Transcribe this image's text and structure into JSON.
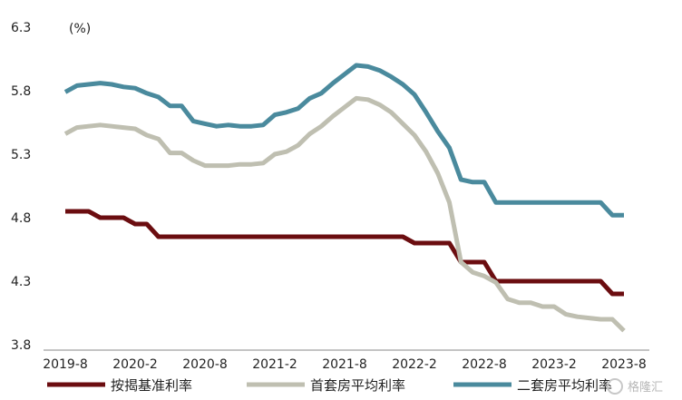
{
  "chart_data": {
    "type": "line",
    "unit_label": "(%)",
    "ylim": [
      3.8,
      6.3
    ],
    "y_ticks": [
      6.3,
      5.8,
      5.3,
      4.8,
      4.3,
      3.8
    ],
    "y_tick_labels": [
      "6.3",
      "5.8",
      "5.3",
      "4.8",
      "4.3",
      "3.8"
    ],
    "x_tick_labels": [
      "2019-8",
      "2020-2",
      "2020-8",
      "2021-2",
      "2021-8",
      "2022-2",
      "2022-8",
      "2023-2",
      "2023-8"
    ],
    "x": [
      "2019-8",
      "2019-9",
      "2019-10",
      "2019-11",
      "2019-12",
      "2020-1",
      "2020-2",
      "2020-3",
      "2020-4",
      "2020-5",
      "2020-6",
      "2020-7",
      "2020-8",
      "2020-9",
      "2020-10",
      "2020-11",
      "2020-12",
      "2021-1",
      "2021-2",
      "2021-3",
      "2021-4",
      "2021-5",
      "2021-6",
      "2021-7",
      "2021-8",
      "2021-9",
      "2021-10",
      "2021-11",
      "2021-12",
      "2022-1",
      "2022-2",
      "2022-3",
      "2022-4",
      "2022-5",
      "2022-6",
      "2022-7",
      "2022-8",
      "2022-9",
      "2022-10",
      "2022-11",
      "2022-12",
      "2023-1",
      "2023-2",
      "2023-3",
      "2023-4",
      "2023-5",
      "2023-6",
      "2023-7",
      "2023-8"
    ],
    "grid": false,
    "legend_position": "bottom",
    "series": [
      {
        "name": "按揭基准利率",
        "color": "#6b0d10",
        "values": [
          4.85,
          4.85,
          4.85,
          4.8,
          4.8,
          4.8,
          4.75,
          4.75,
          4.65,
          4.65,
          4.65,
          4.65,
          4.65,
          4.65,
          4.65,
          4.65,
          4.65,
          4.65,
          4.65,
          4.65,
          4.65,
          4.65,
          4.65,
          4.65,
          4.65,
          4.65,
          4.65,
          4.65,
          4.65,
          4.65,
          4.6,
          4.6,
          4.6,
          4.6,
          4.45,
          4.45,
          4.45,
          4.3,
          4.3,
          4.3,
          4.3,
          4.3,
          4.3,
          4.3,
          4.3,
          4.3,
          4.3,
          4.2,
          4.2
        ]
      },
      {
        "name": "首套房平均利率",
        "color": "#bfbfb1",
        "values": [
          5.46,
          5.51,
          5.52,
          5.53,
          5.52,
          5.51,
          5.5,
          5.45,
          5.42,
          5.31,
          5.31,
          5.25,
          5.21,
          5.21,
          5.21,
          5.22,
          5.22,
          5.23,
          5.3,
          5.32,
          5.37,
          5.46,
          5.52,
          5.6,
          5.67,
          5.74,
          5.73,
          5.69,
          5.63,
          5.54,
          5.45,
          5.32,
          5.15,
          4.92,
          4.45,
          4.37,
          4.34,
          4.29,
          4.16,
          4.13,
          4.13,
          4.1,
          4.1,
          4.04,
          4.02,
          4.01,
          4.0,
          4.0,
          3.91
        ]
      },
      {
        "name": "二套房平均利率",
        "color": "#4a8a9d",
        "values": [
          5.79,
          5.84,
          5.85,
          5.86,
          5.85,
          5.83,
          5.82,
          5.78,
          5.75,
          5.68,
          5.68,
          5.56,
          5.54,
          5.52,
          5.53,
          5.52,
          5.52,
          5.53,
          5.61,
          5.63,
          5.66,
          5.74,
          5.78,
          5.86,
          5.93,
          6.0,
          5.99,
          5.96,
          5.91,
          5.85,
          5.77,
          5.63,
          5.48,
          5.35,
          5.1,
          5.08,
          5.08,
          4.92,
          4.92,
          4.92,
          4.92,
          4.92,
          4.92,
          4.92,
          4.92,
          4.92,
          4.92,
          4.82,
          4.82
        ]
      }
    ]
  },
  "watermark_text": "格隆汇"
}
